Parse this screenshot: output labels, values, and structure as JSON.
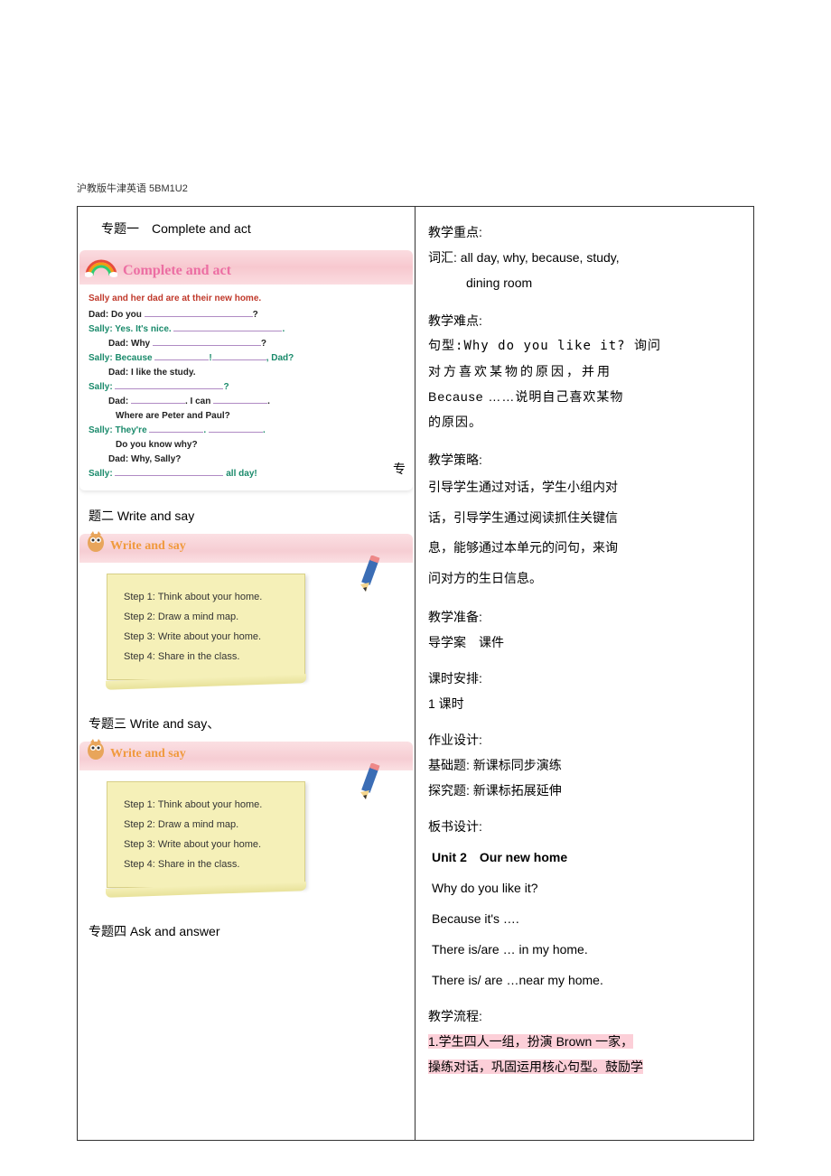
{
  "header": "沪教版牛津英语 5BM1U2",
  "topics": {
    "t1": "专题一　Complete and act",
    "t2": "题二  Write and say",
    "t3": "专题三  Write and say、",
    "t4": "专题四  Ask and answer"
  },
  "completeAct": {
    "title": "Complete and act",
    "intro": "Sally and her dad are at their new home.",
    "lines": [
      {
        "who": "d",
        "pre": "Dad: Do you ",
        "blank": "____________________",
        "post": "?"
      },
      {
        "who": "s",
        "pre": "Sally: Yes. It's nice. ",
        "blank": "__________________",
        "post": "."
      },
      {
        "who": "d",
        "pre": "Dad: Why ",
        "blank": "_______________________",
        "post": "?",
        "ind": true
      },
      {
        "who": "s",
        "pre": "Sally: Because ",
        "blank": "________",
        "mid": "!",
        "blank2": "____________",
        "post": ", Dad?"
      },
      {
        "who": "d",
        "pre": "Dad: I like the study.",
        "ind": true
      },
      {
        "who": "s",
        "pre": "Sally: ",
        "blank": "_________________________",
        "post": "?"
      },
      {
        "who": "d",
        "pre": "Dad: ",
        "blank": "____________",
        "mid": ". I can ",
        "blank2": "____________",
        "post": ".",
        "ind": true
      },
      {
        "who": "d",
        "pre": "Where are Peter and Paul?",
        "ind": true,
        "ind2": true
      },
      {
        "who": "s",
        "pre": "Sally: They're ",
        "blank": "_________",
        "mid": ". ",
        "blank2": "_____________",
        "post": "."
      },
      {
        "who": "d",
        "pre": "Do you know why?",
        "ind": true,
        "ind2": true
      },
      {
        "who": "d",
        "pre": "Dad: Why, Sally?",
        "ind": true
      },
      {
        "who": "s",
        "pre": "Sally: ",
        "blank": "________________________",
        "post": " all day!"
      }
    ]
  },
  "writeSay": {
    "title": "Write and say",
    "steps": [
      "Step 1: Think about your home.",
      "Step 2: Draw a mind map.",
      "Step 3: Write about your home.",
      "Step 4: Share in the class."
    ]
  },
  "zhuanChar": "专",
  "right": {
    "key": {
      "label": "教学重点:",
      "vocab_label": "词汇:",
      "vocab": " all day, why, because, study,",
      "vocab2": "dining room"
    },
    "diff": {
      "label": "教学难点:",
      "pattern_label": "句型:",
      "l1": "Why do you like it? 询问",
      "l2": "对方喜欢某物的原因，并用",
      "l3": "Because  ……说明自己喜欢某物",
      "l4": "的原因。"
    },
    "strat": {
      "label": "教学策略:",
      "l1": "引导学生通过对话，学生小组内对",
      "l2": "话，引导学生通过阅读抓住关键信",
      "l3": "息，能够通过本单元的问句，来询",
      "l4": "问对方的生日信息。"
    },
    "prep": {
      "label": "教学准备:",
      "val": "导学案　课件"
    },
    "time": {
      "label": "课时安排:",
      "val": "1 课时"
    },
    "hw": {
      "label": "作业设计:",
      "l1": "基础题: 新课标同步演练",
      "l2": "探究题: 新课标拓展延伸"
    },
    "board": {
      "label": "板书设计:",
      "title": "Unit 2　Our new home",
      "l1": "Why do you like it?",
      "l2": "Because it's ….",
      "l3": "There is/are … in my home.",
      "l4": "There is/ are …near my home."
    },
    "flow": {
      "label": "教学流程:",
      "l1": "1.学生四人一组，扮演 Brown 一家，",
      "l2": "操练对话，巩固运用核心句型。鼓励学"
    }
  }
}
